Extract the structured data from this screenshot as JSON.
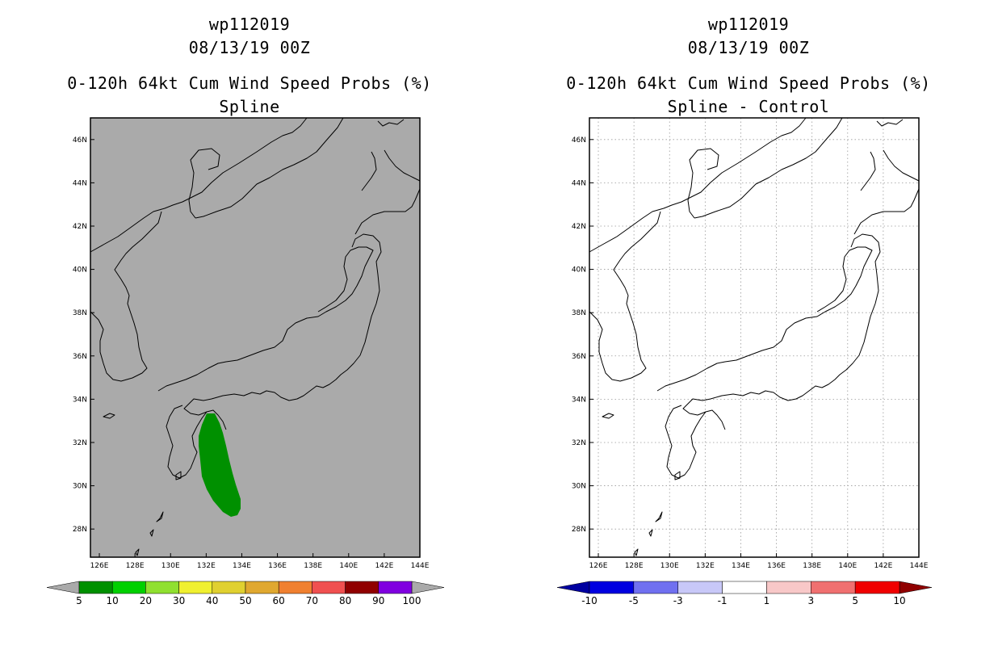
{
  "panels": [
    {
      "id": "left",
      "title_storm": "wp112019",
      "title_date": "08/13/19 00Z",
      "title_product": "0-120h 64kt Cum Wind Speed Probs (%)",
      "title_method": "Spline",
      "map_background": "#aaaaaa",
      "show_grid": false,
      "colorbar": {
        "labels": [
          "5",
          "10",
          "20",
          "30",
          "40",
          "50",
          "60",
          "70",
          "80",
          "90",
          "100"
        ],
        "colors": [
          "#009000",
          "#00d000",
          "#90e030",
          "#f0f030",
          "#e0d030",
          "#e0a830",
          "#f08030",
          "#f05050",
          "#900000",
          "#8000e0"
        ],
        "end_left_color": "#aaaaaa",
        "end_right_color": "#aaaaaa"
      },
      "probability_swath_color": "#009000"
    },
    {
      "id": "right",
      "title_storm": "wp112019",
      "title_date": "08/13/19 00Z",
      "title_product": "0-120h 64kt Cum Wind Speed Probs (%)",
      "title_method": "Spline - Control",
      "map_background": "#ffffff",
      "show_grid": true,
      "colorbar": {
        "labels": [
          "-10",
          "-5",
          "-3",
          "-1",
          "1",
          "3",
          "5",
          "10"
        ],
        "colors": [
          "#0000e0",
          "#7070f0",
          "#c8c8f8",
          "#ffffff",
          "#f8c8c8",
          "#f07070",
          "#f00000"
        ],
        "end_left_color": "#0000a0",
        "end_right_color": "#900000"
      }
    }
  ],
  "map": {
    "lon_ticks": [
      "126E",
      "128E",
      "130E",
      "132E",
      "134E",
      "136E",
      "138E",
      "140E",
      "142E",
      "144E"
    ],
    "lat_ticks": [
      "28N",
      "30N",
      "32N",
      "34N",
      "36N",
      "38N",
      "40N",
      "42N",
      "44N",
      "46N"
    ],
    "lon_range": [
      125.5,
      144
    ],
    "lat_range": [
      26.7,
      47
    ]
  }
}
